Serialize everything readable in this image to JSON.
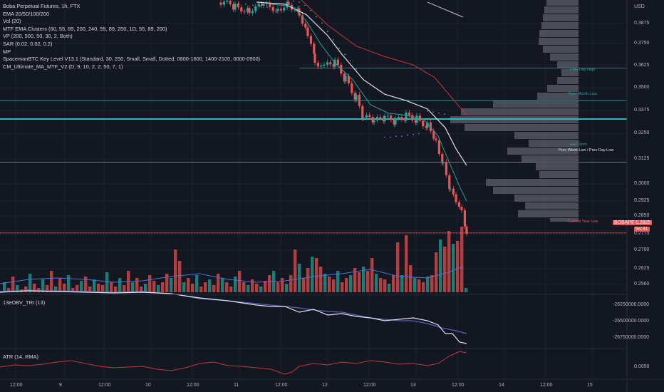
{
  "legend": {
    "title": "Boba Perpetual Futures, 1h, FTX",
    "lines": [
      "EMA 20/50/100/200",
      "Vol (20)",
      "MTF EMA Clusters (60, 55, 89, 200, 240, 55, 89, 200, 1D, 55, 89, 200)",
      "VP (200, 500, 50, 30, 2, Both)",
      "SAR (0.02, 0.02, 0.2)",
      "MP",
      "SpacemanBTC Key Level V13.1 (Standard, 30, 250, Small, Small, Dotted, 0800-1600, 1400-2100, 0000-0900)",
      "CM_Ultimate_MA_MTF_V2 (D, 9, 10, 2, 2, 50, 7, 1)"
    ]
  },
  "currency": "USD",
  "price_axis": [
    "0.3875",
    "0.3750",
    "0.3625",
    "0.3500",
    "0.3375",
    "0.3250",
    "0.3125",
    "0.3000",
    "0.2925",
    "0.2850",
    "0.2775",
    "0.2700",
    "0.2625",
    "0.2560"
  ],
  "obv_label": "13eOBV_TRI (13)",
  "obv_axis": [
    "-26250000.0000",
    "-26500000.0000",
    "-26750000.0000"
  ],
  "atr_label": "ATR (14, RMA)",
  "atr_axis": [
    "0.0050"
  ],
  "time_axis": [
    "12:00",
    "9",
    "12:00",
    "10",
    "12:00",
    "11",
    "12:00",
    "12",
    "12:00",
    "13",
    "12:00",
    "14",
    "12:00",
    "15"
  ],
  "key_levels": {
    "prev_day_high": "Prev Day High",
    "prev_month_low": "Prev Month Low",
    "prev_week_low": "Prev Week Low / Prev Day Low",
    "overlap_label": "4-H Open",
    "current_year_low": "Current Year Low"
  },
  "ticker_tag": {
    "symbol": "BOBAPERP",
    "price": "0.2825",
    "countdown": "54:31"
  },
  "colors": {
    "background": "#131722",
    "bull": "#26a69a",
    "bear": "#ef5350",
    "level_teal": "#2aa3a3",
    "cyan_line": "#22b8cf",
    "white_ma": "#e0e3eb",
    "red_ma": "#c2393a",
    "level_red": "#c2393a",
    "profile": "#5d606b"
  },
  "chart_data": {
    "type": "candlestick",
    "title": "Boba Perpetual Futures, 1h, FTX",
    "y_unit": "USD",
    "ylim": [
      0.2545,
      0.394
    ],
    "key_levels_price": {
      "prev_day_high": 0.3615,
      "prev_month_low": 0.346,
      "cyan": 0.3372,
      "prev_week_low": 0.3165,
      "current_year_low": 0.283
    },
    "last_price": 0.2825
  }
}
